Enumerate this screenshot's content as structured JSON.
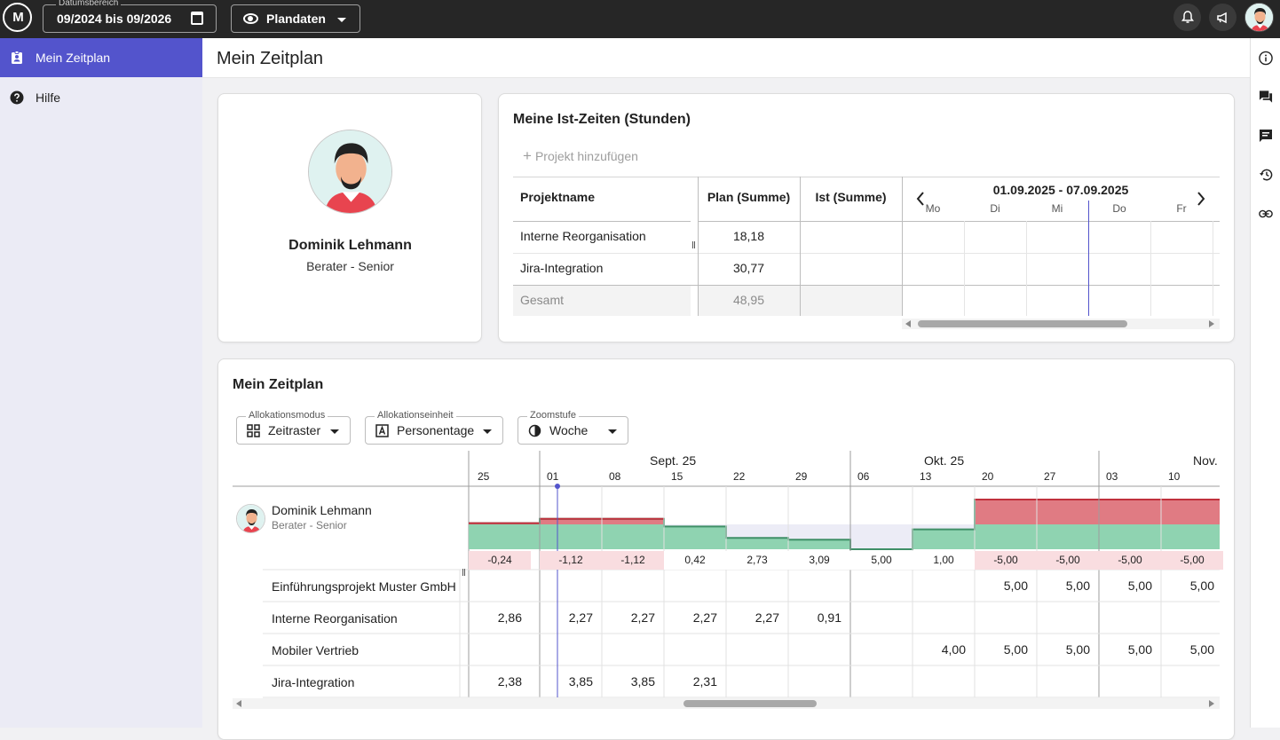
{
  "topbar": {
    "logo_text": "M",
    "date_range_label": "Datumsbereich",
    "date_range_value": "09/2024 bis 09/2026",
    "view_select_value": "Plandaten"
  },
  "sidebar": {
    "items": [
      {
        "label": "Mein Zeitplan",
        "icon": "badge-icon",
        "active": true
      },
      {
        "label": "Hilfe",
        "icon": "help-icon",
        "active": false
      }
    ]
  },
  "header": {
    "title": "Mein Zeitplan"
  },
  "profile": {
    "name": "Dominik Lehmann",
    "role": "Berater - Senior"
  },
  "actuals": {
    "title": "Meine Ist-Zeiten (Stunden)",
    "add_project": "Projekt hinzufügen",
    "columns": {
      "project": "Projektname",
      "plan": "Plan (Summe)",
      "actual": "Ist (Summe)"
    },
    "week_range": "01.09.2025 - 07.09.2025",
    "days": [
      "Mo",
      "Di",
      "Mi",
      "Do",
      "Fr"
    ],
    "rows": [
      {
        "name": "Interne Reorganisation",
        "plan": "18,18",
        "actual": ""
      },
      {
        "name": "Jira-Integration",
        "plan": "30,77",
        "actual": ""
      }
    ],
    "total": {
      "name": "Gesamt",
      "plan": "48,95",
      "actual": ""
    }
  },
  "schedule": {
    "title": "Mein Zeitplan",
    "selects": [
      {
        "label": "Allokationsmodus",
        "value": "Zeitraster",
        "icon": "grid-icon"
      },
      {
        "label": "Allokationseinheit",
        "value": "Personentage",
        "icon": "letter-a-icon"
      },
      {
        "label": "Zoomstufe",
        "value": "Woche",
        "icon": "contrast-icon"
      }
    ],
    "months": [
      "Sept. 25",
      "Okt. 25",
      "Nov."
    ],
    "weeks": [
      "25",
      "01",
      "08",
      "15",
      "22",
      "29",
      "06",
      "13",
      "20",
      "27",
      "03",
      "10"
    ],
    "person": {
      "name": "Dominik Lehmann",
      "role": "Berater - Senior"
    },
    "balance": [
      "-0,24",
      "-1,12",
      "-1,12",
      "0,42",
      "2,73",
      "3,09",
      "5,00",
      "1,00",
      "-5,00",
      "-5,00",
      "-5,00",
      "-5,00"
    ],
    "projects": [
      {
        "name": "Einführungsprojekt Muster GmbH",
        "values": [
          "",
          "",
          "",
          "",
          "",
          "",
          "",
          "",
          "5,00",
          "5,00",
          "5,00",
          "5,00"
        ]
      },
      {
        "name": "Interne Reorganisation",
        "values": [
          "2,86",
          "2,27",
          "2,27",
          "2,27",
          "2,27",
          "0,91",
          "",
          "",
          "",
          "",
          "",
          ""
        ]
      },
      {
        "name": "Mobiler Vertrieb",
        "values": [
          "",
          "",
          "",
          "",
          "",
          "",
          "",
          "4,00",
          "5,00",
          "5,00",
          "5,00",
          "5,00"
        ]
      },
      {
        "name": "Jira-Integration",
        "values": [
          "2,38",
          "3,85",
          "3,85",
          "2,31",
          "",
          "",
          "",
          "",
          "",
          "",
          "",
          ""
        ]
      }
    ]
  },
  "colors": {
    "accent": "#5354cc",
    "over": "#e07b83",
    "under": "#8fd3b1",
    "topbar": "#262626"
  }
}
